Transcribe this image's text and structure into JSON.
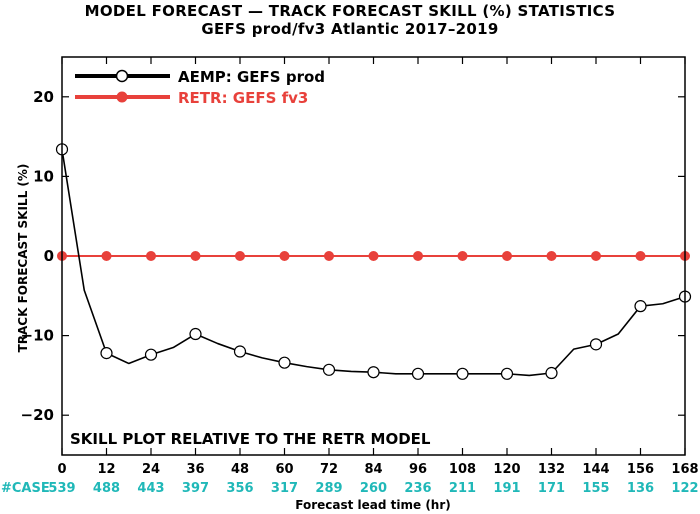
{
  "header": {
    "title": "MODEL FORECAST — TRACK FORECAST SKILL (%) STATISTICS",
    "subtitle": "GEFS prod/fv3 Atlantic 2017–2019"
  },
  "colors": {
    "aemp": "#000000",
    "retr": "#e8413b",
    "case_counts": "#20b8b8"
  },
  "chart_data": {
    "type": "line",
    "title": "MODEL FORECAST — TRACK FORECAST SKILL (%) STATISTICS",
    "subtitle": "GEFS prod/fv3 Atlantic 2017–2019",
    "xlabel": "Forecast lead time (hr)",
    "ylabel": "TRACK FORECAST SKILL (%)",
    "xlim": [
      0,
      168
    ],
    "ylim": [
      -25,
      25
    ],
    "x_ticks": [
      0,
      12,
      24,
      36,
      48,
      60,
      72,
      84,
      96,
      108,
      120,
      132,
      144,
      156,
      168
    ],
    "y_ticks": [
      -20,
      -10,
      0,
      10,
      20
    ],
    "y_tick_labels": [
      "−20",
      "−10",
      "0",
      "10",
      "20"
    ],
    "grid": false,
    "legend_position": "top-left",
    "annotation": "SKILL PLOT RELATIVE TO THE RETR MODEL",
    "case_label": "#CASE",
    "case_counts": [
      539,
      488,
      443,
      397,
      356,
      317,
      289,
      260,
      236,
      211,
      191,
      171,
      155,
      136,
      122
    ],
    "series": [
      {
        "name": "AEMP: GEFS prod",
        "line_x": [
          0,
          6,
          12,
          18,
          24,
          30,
          36,
          42,
          48,
          54,
          60,
          66,
          72,
          78,
          84,
          90,
          96,
          102,
          108,
          114,
          120,
          126,
          132,
          138,
          144,
          150,
          156,
          162,
          168
        ],
        "line_y": [
          13.4,
          -4.3,
          -12.2,
          -13.5,
          -12.4,
          -11.5,
          -9.8,
          -11.0,
          -12.0,
          -12.8,
          -13.4,
          -13.9,
          -14.3,
          -14.5,
          -14.6,
          -14.8,
          -14.8,
          -14.8,
          -14.8,
          -14.8,
          -14.8,
          -15.0,
          -14.7,
          -11.7,
          -11.1,
          -9.8,
          -6.3,
          -6.0,
          -5.1
        ],
        "marker_x": [
          0,
          12,
          24,
          36,
          48,
          60,
          72,
          84,
          96,
          108,
          120,
          132,
          144,
          156,
          168
        ],
        "marker_y": [
          13.4,
          -12.2,
          -12.4,
          -9.8,
          -12.0,
          -13.4,
          -14.3,
          -14.6,
          -14.8,
          -14.8,
          -14.8,
          -14.7,
          -11.1,
          -6.3,
          -5.1
        ]
      },
      {
        "name": "RETR: GEFS fv3",
        "line_x": [
          0,
          168
        ],
        "line_y": [
          0,
          0
        ],
        "marker_x": [
          0,
          12,
          24,
          36,
          48,
          60,
          72,
          84,
          96,
          108,
          120,
          132,
          144,
          156,
          168
        ],
        "marker_y": [
          0,
          0,
          0,
          0,
          0,
          0,
          0,
          0,
          0,
          0,
          0,
          0,
          0,
          0,
          0
        ]
      }
    ]
  }
}
